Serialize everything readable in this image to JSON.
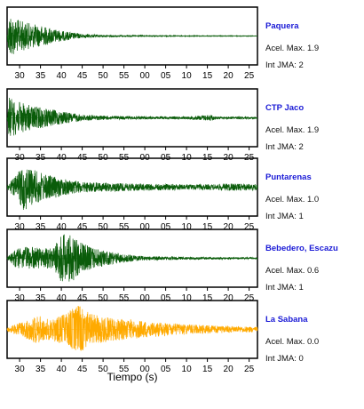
{
  "chart_data": {
    "type": "line",
    "title": "",
    "xlabel": "Tiempo (s)",
    "x_ticks": [
      "30",
      "35",
      "40",
      "45",
      "50",
      "55",
      "00",
      "05",
      "10",
      "15",
      "20",
      "25"
    ],
    "x_range_seconds": [
      27,
      87
    ],
    "panels": [
      {
        "name": "Paquera",
        "accel_label": "Acel. Max. 1.9",
        "jma_label": "Int JMA: 2",
        "accel_max": 1.9,
        "jma": 2,
        "color": "#0a5c0a",
        "envelope": [
          [
            27,
            0.0
          ],
          [
            27.5,
            0.9
          ],
          [
            29,
            0.65
          ],
          [
            32,
            0.5
          ],
          [
            35,
            0.4
          ],
          [
            40,
            0.2
          ],
          [
            45,
            0.08
          ],
          [
            50,
            0.04
          ],
          [
            60,
            0.02
          ],
          [
            87,
            0.01
          ]
        ]
      },
      {
        "name": "CTP Jaco",
        "accel_label": "Acel. Max. 1.9",
        "jma_label": "Int JMA: 2",
        "accel_max": 1.9,
        "jma": 2,
        "color": "#0a5c0a",
        "envelope": [
          [
            27,
            0.0
          ],
          [
            27.5,
            0.8
          ],
          [
            29,
            0.65
          ],
          [
            32,
            0.5
          ],
          [
            35,
            0.4
          ],
          [
            40,
            0.25
          ],
          [
            45,
            0.12
          ],
          [
            50,
            0.08
          ],
          [
            60,
            0.05
          ],
          [
            70,
            0.05
          ],
          [
            76,
            0.12
          ],
          [
            77,
            0.05
          ],
          [
            87,
            0.04
          ]
        ]
      },
      {
        "name": "Puntarenas",
        "accel_label": "Acel. Max. 1.0",
        "jma_label": "Int JMA: 1",
        "accel_max": 1.0,
        "jma": 1,
        "color": "#0a5c0a",
        "envelope": [
          [
            27,
            0.1
          ],
          [
            29,
            0.4
          ],
          [
            31,
            0.9
          ],
          [
            33,
            0.7
          ],
          [
            36,
            0.5
          ],
          [
            40,
            0.35
          ],
          [
            45,
            0.2
          ],
          [
            55,
            0.15
          ],
          [
            65,
            0.12
          ],
          [
            75,
            0.1
          ],
          [
            80,
            0.14
          ],
          [
            87,
            0.12
          ]
        ]
      },
      {
        "name": "Bebedero, Escazu",
        "accel_label": "Acel. Max. 0.6",
        "jma_label": "Int JMA: 1",
        "accel_max": 0.6,
        "jma": 1,
        "color": "#0a5c0a",
        "envelope": [
          [
            27,
            0.03
          ],
          [
            29,
            0.35
          ],
          [
            32,
            0.45
          ],
          [
            35,
            0.4
          ],
          [
            38,
            0.4
          ],
          [
            40,
            0.95
          ],
          [
            43,
            0.85
          ],
          [
            46,
            0.5
          ],
          [
            50,
            0.3
          ],
          [
            55,
            0.15
          ],
          [
            60,
            0.08
          ],
          [
            70,
            0.05
          ],
          [
            87,
            0.03
          ]
        ]
      },
      {
        "name": "La Sabana",
        "accel_label": "Acel. Max. 0.0",
        "jma_label": "Int JMA: 0",
        "accel_max": 0.0,
        "jma": 0,
        "color": "#ffaa00",
        "envelope": [
          [
            27,
            0.08
          ],
          [
            30,
            0.25
          ],
          [
            34,
            0.55
          ],
          [
            37,
            0.4
          ],
          [
            41,
            0.6
          ],
          [
            44,
            0.95
          ],
          [
            47,
            0.6
          ],
          [
            52,
            0.45
          ],
          [
            58,
            0.35
          ],
          [
            65,
            0.25
          ],
          [
            72,
            0.18
          ],
          [
            80,
            0.13
          ],
          [
            87,
            0.1
          ]
        ]
      }
    ]
  }
}
